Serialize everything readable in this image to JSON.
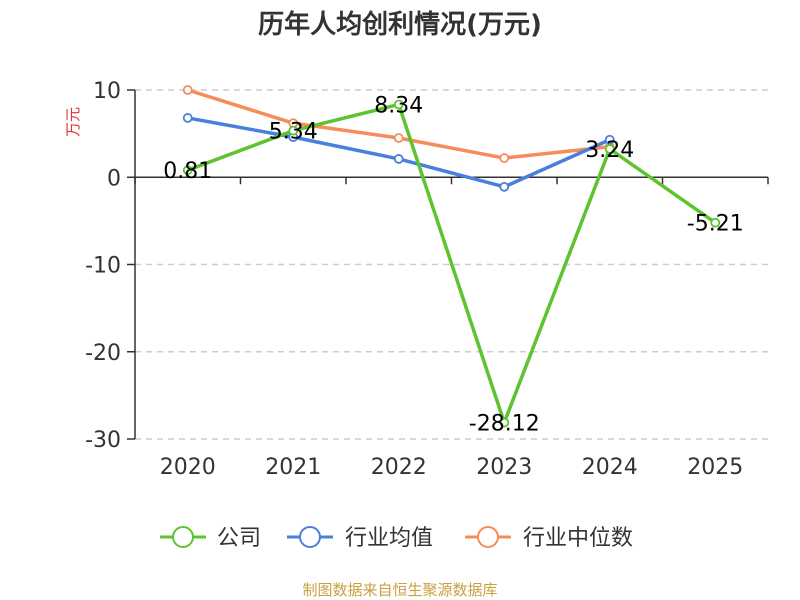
{
  "chart_data": {
    "type": "line",
    "title": "历年人均创利情况(万元)",
    "ylabel": "万元",
    "xlabel": "",
    "categories": [
      "2020",
      "2021",
      "2022",
      "2023",
      "2024",
      "2025"
    ],
    "ylim": [
      -30,
      10
    ],
    "yticks": [
      10,
      0,
      -10,
      -20,
      -30
    ],
    "grid": true,
    "legend_position": "bottom",
    "series": [
      {
        "name": "公司",
        "color": "#5ec32e",
        "values": [
          0.81,
          5.34,
          8.34,
          -28.12,
          3.24,
          -5.21
        ],
        "labels": [
          "0.81",
          "5.34",
          "8.34",
          "-28.12",
          "3.24",
          "-5.21"
        ]
      },
      {
        "name": "行业均值",
        "color": "#4a7fdc",
        "values": [
          6.8,
          4.6,
          2.1,
          -1.1,
          4.3,
          null
        ]
      },
      {
        "name": "行业中位数",
        "color": "#f58c5a",
        "values": [
          10.0,
          6.2,
          4.5,
          2.2,
          3.5,
          null
        ]
      }
    ],
    "source": "制图数据来自恒生聚源数据库"
  }
}
